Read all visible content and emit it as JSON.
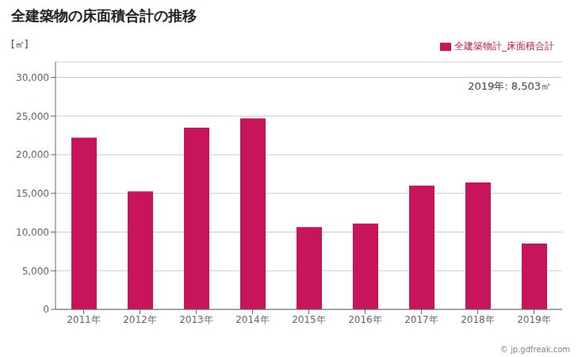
{
  "chart_data": {
    "type": "bar",
    "title": "全建築物の床面積合計の推移",
    "ylabel": "[㎡]",
    "annotations": [
      "2019年: 8,503㎡",
      "© jp.gdfreak.com"
    ],
    "categories": [
      "2011年",
      "2012年",
      "2013年",
      "2014年",
      "2015年",
      "2016年",
      "2017年",
      "2018年",
      "2019年"
    ],
    "series": [
      {
        "name": "全建築物計_床面積合計",
        "color": "#c8145a",
        "values": [
          22200,
          15250,
          23500,
          24700,
          10650,
          11100,
          16000,
          16400,
          8503
        ]
      }
    ],
    "ylim": [
      0,
      32000
    ],
    "yticks": [
      0,
      {
        "value": 5000,
        "label": "5,000"
      },
      {
        "value": 10000,
        "label": "10,000"
      },
      {
        "value": 15000,
        "label": "15,000"
      },
      {
        "value": 20000,
        "label": "20,000"
      },
      {
        "value": 25000,
        "label": "25,000"
      },
      {
        "value": 30000,
        "label": "30,000"
      }
    ],
    "grid": true,
    "legend": "top"
  }
}
